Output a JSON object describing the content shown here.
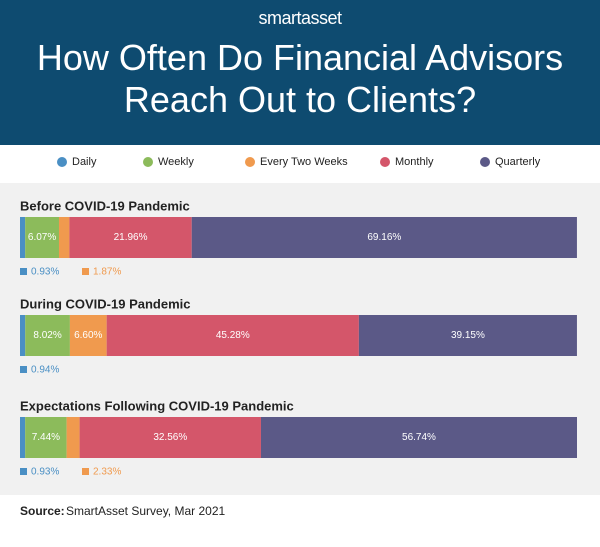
{
  "logo": "smartasset",
  "chart_data": {
    "type": "stacked-bar-horizontal",
    "title": "How Often Do Financial Advisors Reach Out to Clients?",
    "categories": [
      "Before COVID-19 Pandemic",
      "During COVID-19 Pandemic",
      "Expectations Following COVID-19 Pandemic"
    ],
    "xlim": [
      0,
      100
    ],
    "series": [
      {
        "name": "Daily",
        "color": "#4a8fc4",
        "values": [
          0.93,
          0.94,
          0.93
        ],
        "value_labels": [
          "0.93%",
          "0.94%",
          "0.93%"
        ]
      },
      {
        "name": "Weekly",
        "color": "#8cbb5b",
        "values": [
          6.07,
          8.02,
          7.44
        ],
        "value_labels": [
          "6.07%",
          "8.02%",
          "7.44%"
        ]
      },
      {
        "name": "Every Two Weeks",
        "color": "#f09a4e",
        "values": [
          1.87,
          6.6,
          2.33
        ],
        "value_labels": [
          "1.87%",
          "6.60%",
          "2.33%"
        ]
      },
      {
        "name": "Monthly",
        "color": "#d4566a",
        "values": [
          21.96,
          45.28,
          32.56
        ],
        "value_labels": [
          "21.96%",
          "45.28%",
          "32.56%"
        ]
      },
      {
        "name": "Quarterly",
        "color": "#5b5987",
        "values": [
          69.16,
          39.15,
          56.74
        ],
        "value_labels": [
          "69.16%",
          "39.15%",
          "56.74%"
        ]
      }
    ],
    "legend": "top",
    "source_label": "Source:",
    "source": "SmartAsset Survey, Mar 2021"
  }
}
